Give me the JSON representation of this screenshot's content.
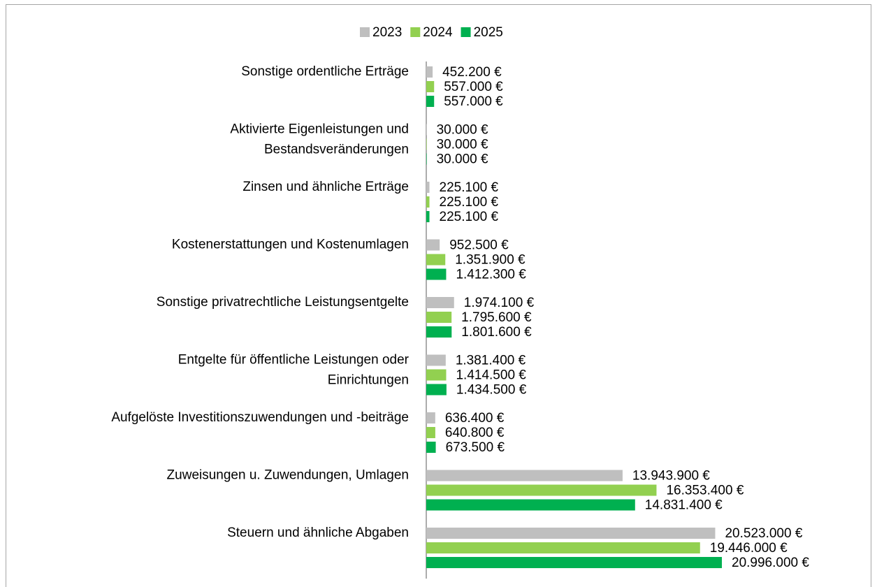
{
  "chart_data": {
    "type": "hbar",
    "categories": [
      [
        "Sonstige ordentliche Erträge"
      ],
      [
        "Aktivierte Eigenleistungen und",
        "Bestandsveränderungen"
      ],
      [
        "Zinsen und ähnliche Erträge"
      ],
      [
        "Kostenerstattungen und Kostenumlagen"
      ],
      [
        "Sonstige privatrechtliche Leistungsentgelte"
      ],
      [
        "Entgelte für öffentliche Leistungen oder",
        "Einrichtungen"
      ],
      [
        "Aufgelöste Investitionszuwendungen und -beiträge"
      ],
      [
        "Zuweisungen u. Zuwendungen, Umlagen"
      ],
      [
        "Steuern und ähnliche Abgaben"
      ]
    ],
    "legend": "top",
    "series": [
      {
        "name": "2023",
        "color": "#bfbfbf",
        "values": [
          452200,
          30000,
          225100,
          952500,
          1974100,
          1381400,
          636400,
          13943900,
          20523000
        ],
        "value_labels": [
          "452.200 €",
          "30.000 €",
          "225.100 €",
          "952.500 €",
          "1.974.100 €",
          "1.381.400 €",
          "636.400 €",
          "13.943.900 €",
          "20.523.000 €"
        ]
      },
      {
        "name": "2024",
        "color": "#92d050",
        "values": [
          557000,
          30000,
          225100,
          1351900,
          1795600,
          1414500,
          640800,
          16353400,
          19446000
        ],
        "value_labels": [
          "557.000 €",
          "30.000 €",
          "225.100 €",
          "1.351.900 €",
          "1.795.600 €",
          "1.414.500 €",
          "640.800 €",
          "16.353.400 €",
          "19.446.000 €"
        ]
      },
      {
        "name": "2025",
        "color": "#00b050",
        "values": [
          557000,
          30000,
          225100,
          1412300,
          1801600,
          1434500,
          673500,
          14831400,
          20996000
        ],
        "value_labels": [
          "557.000 €",
          "30.000 €",
          "225.100 €",
          "1.412.300 €",
          "1.801.600 €",
          "1.434.500 €",
          "673.500 €",
          "14.831.400 €",
          "20.996.000 €"
        ]
      }
    ]
  }
}
